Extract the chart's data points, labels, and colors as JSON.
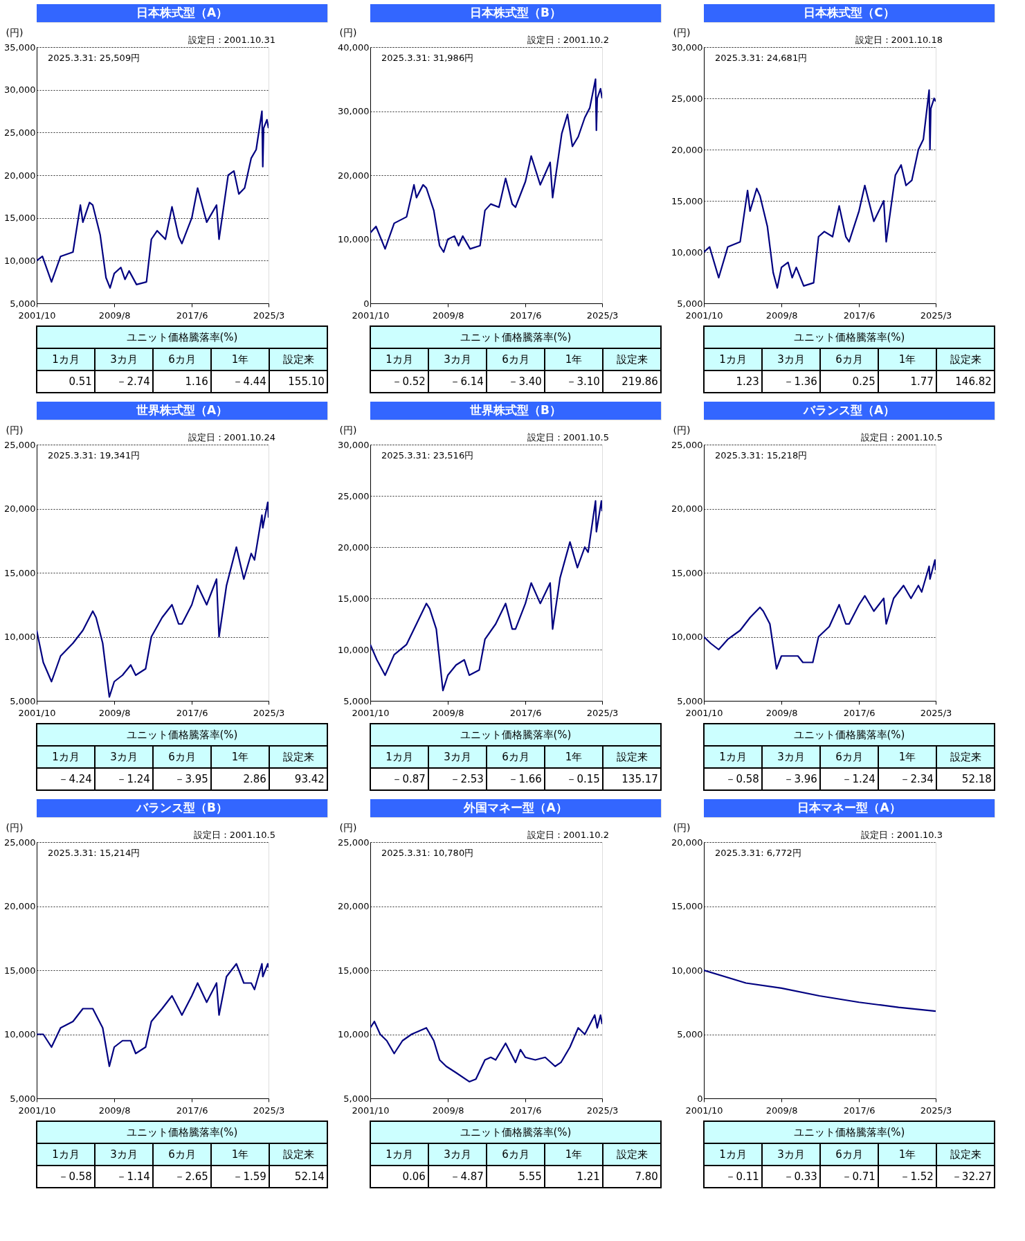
{
  "chart_data": [
    {
      "type": "line",
      "title": "日本株式型（A）",
      "ylabel": "(円)",
      "grid": "y",
      "x": [
        "2001-10",
        "2002-05",
        "2003-04",
        "2004-03",
        "2005-06",
        "2006-03",
        "2006-06",
        "2007-02",
        "2007-06",
        "2008-03",
        "2008-10",
        "2009-03",
        "2009-08",
        "2010-04",
        "2010-09",
        "2011-02",
        "2011-11",
        "2012-11",
        "2013-05",
        "2013-12",
        "2014-10",
        "2015-06",
        "2016-02",
        "2016-06",
        "2017-06",
        "2018-01",
        "2018-12",
        "2019-12",
        "2020-03",
        "2021-02",
        "2021-09",
        "2022-03",
        "2022-10",
        "2023-06",
        "2023-12",
        "2024-07",
        "2024-08",
        "2024-09",
        "2025-01",
        "2025-03"
      ],
      "series": [
        {
          "color": "#000080",
          "values": [
            10000,
            10500,
            7500,
            10500,
            11000,
            16500,
            14500,
            16800,
            16500,
            13000,
            8000,
            6800,
            8500,
            9200,
            7800,
            8800,
            7200,
            7500,
            12500,
            13500,
            12500,
            16300,
            12800,
            12000,
            15000,
            18500,
            14500,
            16500,
            12500,
            20000,
            20500,
            17800,
            18500,
            22000,
            23000,
            27500,
            21000,
            25500,
            26500,
            25500
          ]
        }
      ],
      "xlim": [
        "2001-10",
        "2025-03"
      ],
      "xticks": [
        {
          "value": "2001-10",
          "label": "2001/10"
        },
        {
          "value": "2009-08",
          "label": "2009/8"
        },
        {
          "value": "2017-06",
          "label": "2017/6"
        },
        {
          "value": "2025-03",
          "label": "2025/3"
        }
      ],
      "ylim": [
        5000,
        35000
      ],
      "yticks": [
        {
          "value": 5000,
          "label": "5,000"
        },
        {
          "value": 10000,
          "label": "10,000"
        },
        {
          "value": 15000,
          "label": "15,000"
        },
        {
          "value": 20000,
          "label": "20,000"
        },
        {
          "value": 25000,
          "label": "25,000"
        },
        {
          "value": 30000,
          "label": "30,000"
        },
        {
          "value": 35000,
          "label": "35,000"
        }
      ],
      "annotations": [
        "設定日：2001.10.31",
        "2025.3.31: 25,509円",
        "ユニット価格騰落率(%)",
        "1カ月",
        "3カ月",
        "6カ月",
        "1年",
        "設定来",
        "0.51",
        "－2.74",
        "1.16",
        "－4.44",
        "155.10"
      ]
    },
    {
      "type": "line",
      "title": "日本株式型（B）",
      "ylabel": "(円)",
      "grid": "y",
      "x": [
        "2001-10",
        "2002-05",
        "2003-04",
        "2004-03",
        "2005-06",
        "2006-03",
        "2006-06",
        "2007-02",
        "2007-06",
        "2008-03",
        "2008-10",
        "2009-03",
        "2009-08",
        "2010-04",
        "2010-09",
        "2011-02",
        "2011-11",
        "2012-11",
        "2013-05",
        "2013-12",
        "2014-10",
        "2015-06",
        "2016-02",
        "2016-06",
        "2017-06",
        "2018-01",
        "2018-12",
        "2019-12",
        "2020-03",
        "2021-02",
        "2021-09",
        "2022-03",
        "2022-10",
        "2023-06",
        "2023-12",
        "2024-07",
        "2024-08",
        "2024-09",
        "2025-01",
        "2025-03"
      ],
      "series": [
        {
          "color": "#000080",
          "values": [
            11000,
            12000,
            8500,
            12500,
            13500,
            18500,
            16500,
            18500,
            18000,
            14500,
            9000,
            8000,
            10000,
            10500,
            9000,
            10500,
            8500,
            9000,
            14500,
            15500,
            15000,
            19500,
            15500,
            15000,
            19000,
            23000,
            18500,
            22000,
            16500,
            26500,
            29500,
            24500,
            26000,
            29000,
            30500,
            35000,
            27000,
            32000,
            33500,
            32000
          ]
        }
      ],
      "xlim": [
        "2001-10",
        "2025-03"
      ],
      "xticks": [
        {
          "value": "2001-10",
          "label": "2001/10"
        },
        {
          "value": "2009-08",
          "label": "2009/8"
        },
        {
          "value": "2017-06",
          "label": "2017/6"
        },
        {
          "value": "2025-03",
          "label": "2025/3"
        }
      ],
      "ylim": [
        0,
        40000
      ],
      "yticks": [
        0,
        {
          "value": 10000,
          "label": "10,000"
        },
        {
          "value": 20000,
          "label": "20,000"
        },
        {
          "value": 30000,
          "label": "30,000"
        },
        {
          "value": 40000,
          "label": "40,000"
        }
      ],
      "annotations": [
        "設定日：2001.10.2",
        "2025.3.31: 31,986円",
        "ユニット価格騰落率(%)",
        "1カ月",
        "3カ月",
        "6カ月",
        "1年",
        "設定来",
        "－0.52",
        "－6.14",
        "－3.40",
        "－3.10",
        "219.86"
      ]
    },
    {
      "type": "line",
      "title": "日本株式型（C）",
      "ylabel": "(円)",
      "grid": "y",
      "x": [
        "2001-10",
        "2002-05",
        "2003-04",
        "2004-03",
        "2005-06",
        "2006-03",
        "2006-06",
        "2007-02",
        "2007-06",
        "2008-03",
        "2008-10",
        "2009-03",
        "2009-08",
        "2010-04",
        "2010-09",
        "2011-02",
        "2011-11",
        "2012-11",
        "2013-05",
        "2013-12",
        "2014-10",
        "2015-06",
        "2016-02",
        "2016-06",
        "2017-06",
        "2018-01",
        "2018-12",
        "2019-12",
        "2020-03",
        "2021-02",
        "2021-09",
        "2022-03",
        "2022-10",
        "2023-06",
        "2023-12",
        "2024-07",
        "2024-08",
        "2024-09",
        "2025-01",
        "2025-03"
      ],
      "series": [
        {
          "color": "#000080",
          "values": [
            10000,
            10500,
            7500,
            10500,
            11000,
            16000,
            14000,
            16200,
            15500,
            12500,
            8000,
            6500,
            8500,
            9000,
            7500,
            8500,
            6700,
            7000,
            11500,
            12000,
            11500,
            14500,
            11500,
            11000,
            14000,
            16500,
            13000,
            15000,
            11000,
            17500,
            18500,
            16500,
            17000,
            20000,
            21000,
            25800,
            20000,
            24000,
            25000,
            24700
          ]
        }
      ],
      "xlim": [
        "2001-10",
        "2025-03"
      ],
      "xticks": [
        {
          "value": "2001-10",
          "label": "2001/10"
        },
        {
          "value": "2009-08",
          "label": "2009/8"
        },
        {
          "value": "2017-06",
          "label": "2017/6"
        },
        {
          "value": "2025-03",
          "label": "2025/3"
        }
      ],
      "ylim": [
        5000,
        30000
      ],
      "yticks": [
        {
          "value": 5000,
          "label": "5,000"
        },
        {
          "value": 10000,
          "label": "10,000"
        },
        {
          "value": 15000,
          "label": "15,000"
        },
        {
          "value": 20000,
          "label": "20,000"
        },
        {
          "value": 25000,
          "label": "25,000"
        },
        {
          "value": 30000,
          "label": "30,000"
        }
      ],
      "annotations": [
        "設定日：2001.10.18",
        "2025.3.31: 24,681円",
        "ユニット価格騰落率(%)",
        "1カ月",
        "3カ月",
        "6カ月",
        "1年",
        "設定来",
        "1.23",
        "－1.36",
        "0.25",
        "1.77",
        "146.82"
      ]
    },
    {
      "type": "line",
      "title": "世界株式型（A）",
      "ylabel": "(円)",
      "grid": "y",
      "x": [
        "2001-10",
        "2002-06",
        "2003-04",
        "2004-03",
        "2005-06",
        "2006-06",
        "2007-06",
        "2007-10",
        "2008-06",
        "2009-02",
        "2009-08",
        "2010-06",
        "2011-04",
        "2011-10",
        "2012-10",
        "2013-05",
        "2014-06",
        "2015-06",
        "2016-02",
        "2016-06",
        "2017-06",
        "2018-01",
        "2018-12",
        "2019-12",
        "2020-03",
        "2020-12",
        "2021-12",
        "2022-09",
        "2023-06",
        "2023-10",
        "2024-07",
        "2024-08",
        "2025-02",
        "2025-03"
      ],
      "series": [
        {
          "color": "#000080",
          "values": [
            10500,
            8000,
            6500,
            8500,
            9500,
            10500,
            12000,
            11500,
            9500,
            5300,
            6500,
            7000,
            7800,
            7000,
            7500,
            10000,
            11500,
            12500,
            11000,
            11000,
            12500,
            14000,
            12500,
            14500,
            10000,
            14000,
            17000,
            14500,
            16500,
            16000,
            19500,
            18500,
            20500,
            19300
          ]
        }
      ],
      "xlim": [
        "2001-10",
        "2025-03"
      ],
      "xticks": [
        {
          "value": "2001-10",
          "label": "2001/10"
        },
        {
          "value": "2009-08",
          "label": "2009/8"
        },
        {
          "value": "2017-06",
          "label": "2017/6"
        },
        {
          "value": "2025-03",
          "label": "2025/3"
        }
      ],
      "ylim": [
        5000,
        25000
      ],
      "yticks": [
        {
          "value": 5000,
          "label": "5,000"
        },
        {
          "value": 10000,
          "label": "10,000"
        },
        {
          "value": 15000,
          "label": "15,000"
        },
        {
          "value": 20000,
          "label": "20,000"
        },
        {
          "value": 25000,
          "label": "25,000"
        }
      ],
      "annotations": [
        "設定日：2001.10.24",
        "2025.3.31: 19,341円",
        "ユニット価格騰落率(%)",
        "1カ月",
        "3カ月",
        "6カ月",
        "1年",
        "設定来",
        "－4.24",
        "－1.24",
        "－3.95",
        "2.86",
        "93.42"
      ]
    },
    {
      "type": "line",
      "title": "世界株式型（B）",
      "ylabel": "(円)",
      "grid": "y",
      "x": [
        "2001-10",
        "2002-06",
        "2003-04",
        "2004-03",
        "2005-06",
        "2006-06",
        "2007-06",
        "2007-10",
        "2008-06",
        "2009-02",
        "2009-08",
        "2010-06",
        "2011-04",
        "2011-10",
        "2012-10",
        "2013-05",
        "2014-06",
        "2015-06",
        "2016-02",
        "2016-06",
        "2017-06",
        "2018-01",
        "2018-12",
        "2019-12",
        "2020-03",
        "2020-12",
        "2021-12",
        "2022-09",
        "2023-06",
        "2023-10",
        "2024-07",
        "2024-08",
        "2025-02",
        "2025-03"
      ],
      "series": [
        {
          "color": "#000080",
          "values": [
            10500,
            9000,
            7500,
            9500,
            10500,
            12500,
            14500,
            14000,
            12000,
            6000,
            7500,
            8500,
            9000,
            7500,
            8000,
            11000,
            12500,
            14500,
            12000,
            12000,
            14500,
            16500,
            14500,
            16500,
            12000,
            17000,
            20500,
            18000,
            20000,
            19500,
            24500,
            21500,
            24500,
            23500
          ]
        }
      ],
      "xlim": [
        "2001-10",
        "2025-03"
      ],
      "xticks": [
        {
          "value": "2001-10",
          "label": "2001/10"
        },
        {
          "value": "2009-08",
          "label": "2009/8"
        },
        {
          "value": "2017-06",
          "label": "2017/6"
        },
        {
          "value": "2025-03",
          "label": "2025/3"
        }
      ],
      "ylim": [
        5000,
        30000
      ],
      "yticks": [
        {
          "value": 5000,
          "label": "5,000"
        },
        {
          "value": 10000,
          "label": "10,000"
        },
        {
          "value": 15000,
          "label": "15,000"
        },
        {
          "value": 20000,
          "label": "20,000"
        },
        {
          "value": 25000,
          "label": "25,000"
        },
        {
          "value": 30000,
          "label": "30,000"
        }
      ],
      "annotations": [
        "設定日：2001.10.5",
        "2025.3.31: 23,516円",
        "ユニット価格騰落率(%)",
        "1カ月",
        "3カ月",
        "6カ月",
        "1年",
        "設定来",
        "－0.87",
        "－2.53",
        "－1.66",
        "－0.15",
        "135.17"
      ]
    },
    {
      "type": "line",
      "title": "バランス型（A）",
      "ylabel": "(円)",
      "grid": "y",
      "x": [
        "2001-10",
        "2002-06",
        "2003-04",
        "2004-03",
        "2005-06",
        "2006-06",
        "2007-06",
        "2007-10",
        "2008-06",
        "2009-02",
        "2009-08",
        "2010-06",
        "2011-04",
        "2011-10",
        "2012-10",
        "2013-05",
        "2014-06",
        "2015-06",
        "2016-02",
        "2016-06",
        "2017-06",
        "2018-01",
        "2018-12",
        "2019-12",
        "2020-03",
        "2020-12",
        "2021-12",
        "2022-09",
        "2023-06",
        "2023-10",
        "2024-07",
        "2024-08",
        "2025-02",
        "2025-03"
      ],
      "series": [
        {
          "color": "#000080",
          "values": [
            10000,
            9500,
            9000,
            9800,
            10500,
            11500,
            12300,
            12000,
            11000,
            7500,
            8500,
            8500,
            8500,
            8000,
            8000,
            10000,
            10800,
            12500,
            11000,
            11000,
            12500,
            13200,
            12000,
            13000,
            11000,
            13000,
            14000,
            13000,
            14000,
            13500,
            15500,
            14500,
            16000,
            15200
          ]
        }
      ],
      "xlim": [
        "2001-10",
        "2025-03"
      ],
      "xticks": [
        {
          "value": "2001-10",
          "label": "2001/10"
        },
        {
          "value": "2009-08",
          "label": "2009/8"
        },
        {
          "value": "2017-06",
          "label": "2017/6"
        },
        {
          "value": "2025-03",
          "label": "2025/3"
        }
      ],
      "ylim": [
        5000,
        25000
      ],
      "yticks": [
        {
          "value": 5000,
          "label": "5,000"
        },
        {
          "value": 10000,
          "label": "10,000"
        },
        {
          "value": 15000,
          "label": "15,000"
        },
        {
          "value": 20000,
          "label": "20,000"
        },
        {
          "value": 25000,
          "label": "25,000"
        }
      ],
      "annotations": [
        "設定日：2001.10.5",
        "2025.3.31: 15,218円",
        "ユニット価格騰落率(%)",
        "1カ月",
        "3カ月",
        "6カ月",
        "1年",
        "設定来",
        "－0.58",
        "－3.96",
        "－1.24",
        "－2.34",
        "52.18"
      ]
    },
    {
      "type": "line",
      "title": "バランス型（B）",
      "ylabel": "(円)",
      "grid": "y",
      "x": [
        "2001-10",
        "2002-06",
        "2003-04",
        "2004-03",
        "2005-06",
        "2006-06",
        "2007-06",
        "2007-10",
        "2008-06",
        "2009-02",
        "2009-08",
        "2010-06",
        "2011-04",
        "2011-10",
        "2012-10",
        "2013-05",
        "2014-06",
        "2015-06",
        "2016-02",
        "2016-06",
        "2017-06",
        "2018-01",
        "2018-12",
        "2019-12",
        "2020-03",
        "2020-12",
        "2021-12",
        "2022-09",
        "2023-06",
        "2023-10",
        "2024-07",
        "2024-08",
        "2025-02",
        "2025-03"
      ],
      "series": [
        {
          "color": "#000080",
          "values": [
            10000,
            10000,
            9000,
            10500,
            11000,
            12000,
            12000,
            11500,
            10500,
            7500,
            9000,
            9500,
            9500,
            8500,
            9000,
            11000,
            12000,
            13000,
            12000,
            11500,
            13000,
            14000,
            12500,
            14000,
            11500,
            14500,
            15500,
            14000,
            14000,
            13500,
            15500,
            14500,
            15500,
            15200
          ]
        }
      ],
      "xlim": [
        "2001-10",
        "2025-03"
      ],
      "xticks": [
        {
          "value": "2001-10",
          "label": "2001/10"
        },
        {
          "value": "2009-08",
          "label": "2009/8"
        },
        {
          "value": "2017-06",
          "label": "2017/6"
        },
        {
          "value": "2025-03",
          "label": "2025/3"
        }
      ],
      "ylim": [
        5000,
        25000
      ],
      "yticks": [
        {
          "value": 5000,
          "label": "5,000"
        },
        {
          "value": 10000,
          "label": "10,000"
        },
        {
          "value": 15000,
          "label": "15,000"
        },
        {
          "value": 20000,
          "label": "20,000"
        },
        {
          "value": 25000,
          "label": "25,000"
        }
      ],
      "annotations": [
        "設定日：2001.10.5",
        "2025.3.31: 15,214円",
        "ユニット価格騰落率(%)",
        "1カ月",
        "3カ月",
        "6カ月",
        "1年",
        "設定来",
        "－0.58",
        "－1.14",
        "－2.65",
        "－1.59",
        "52.14"
      ]
    },
    {
      "type": "line",
      "title": "外国マネー型（A）",
      "ylabel": "(円)",
      "grid": "y",
      "x": [
        "2001-10",
        "2002-03",
        "2002-10",
        "2003-06",
        "2004-03",
        "2005-01",
        "2005-12",
        "2007-06",
        "2008-03",
        "2008-10",
        "2009-06",
        "2010-06",
        "2011-10",
        "2012-06",
        "2013-05",
        "2013-12",
        "2014-06",
        "2015-06",
        "2016-06",
        "2016-12",
        "2017-06",
        "2018-06",
        "2019-06",
        "2020-06",
        "2021-01",
        "2021-12",
        "2022-10",
        "2023-06",
        "2024-06",
        "2024-09",
        "2025-01",
        "2025-03"
      ],
      "series": [
        {
          "color": "#000080",
          "values": [
            10500,
            11000,
            10000,
            9500,
            8500,
            9500,
            10000,
            10500,
            9500,
            8000,
            7500,
            7000,
            6300,
            6500,
            8000,
            8200,
            8000,
            9300,
            7800,
            8800,
            8200,
            8000,
            8200,
            7500,
            7800,
            9000,
            10500,
            10000,
            11500,
            10500,
            11500,
            10800
          ]
        }
      ],
      "xlim": [
        "2001-10",
        "2025-03"
      ],
      "xticks": [
        {
          "value": "2001-10",
          "label": "2001/10"
        },
        {
          "value": "2009-08",
          "label": "2009/8"
        },
        {
          "value": "2017-06",
          "label": "2017/6"
        },
        {
          "value": "2025-03",
          "label": "2025/3"
        }
      ],
      "ylim": [
        5000,
        25000
      ],
      "yticks": [
        {
          "value": 5000,
          "label": "5,000"
        },
        {
          "value": 10000,
          "label": "10,000"
        },
        {
          "value": 15000,
          "label": "15,000"
        },
        {
          "value": 20000,
          "label": "20,000"
        },
        {
          "value": 25000,
          "label": "25,000"
        }
      ],
      "annotations": [
        "設定日：2001.10.2",
        "2025.3.31: 10,780円",
        "ユニット価格騰落率(%)",
        "1カ月",
        "3カ月",
        "6カ月",
        "1年",
        "設定来",
        "0.06",
        "－4.87",
        "5.55",
        "1.21",
        "7.80"
      ]
    },
    {
      "type": "line",
      "title": "日本マネー型（A）",
      "ylabel": "(円)",
      "grid": "y",
      "x": [
        "2001-10",
        "2006-01",
        "2009-08",
        "2013-06",
        "2017-06",
        "2021-06",
        "2025-03"
      ],
      "series": [
        {
          "color": "#000080",
          "values": [
            10000,
            9000,
            8600,
            8000,
            7500,
            7100,
            6800
          ]
        }
      ],
      "xlim": [
        "2001-10",
        "2025-03"
      ],
      "xticks": [
        {
          "value": "2001-10",
          "label": "2001/10"
        },
        {
          "value": "2009-08",
          "label": "2009/8"
        },
        {
          "value": "2017-06",
          "label": "2017/6"
        },
        {
          "value": "2025-03",
          "label": "2025/3"
        }
      ],
      "ylim": [
        0,
        20000
      ],
      "yticks": [
        0,
        {
          "value": 5000,
          "label": "5,000"
        },
        {
          "value": 10000,
          "label": "10,000"
        },
        {
          "value": 15000,
          "label": "15,000"
        },
        {
          "value": 20000,
          "label": "20,000"
        }
      ],
      "annotations": [
        "設定日：2001.10.3",
        "2025.3.31: 6,772円",
        "ユニット価格騰落率(%)",
        "1カ月",
        "3カ月",
        "6カ月",
        "1年",
        "設定来",
        "－0.11",
        "－0.33",
        "－0.71",
        "－1.52",
        "－32.27"
      ]
    }
  ]
}
